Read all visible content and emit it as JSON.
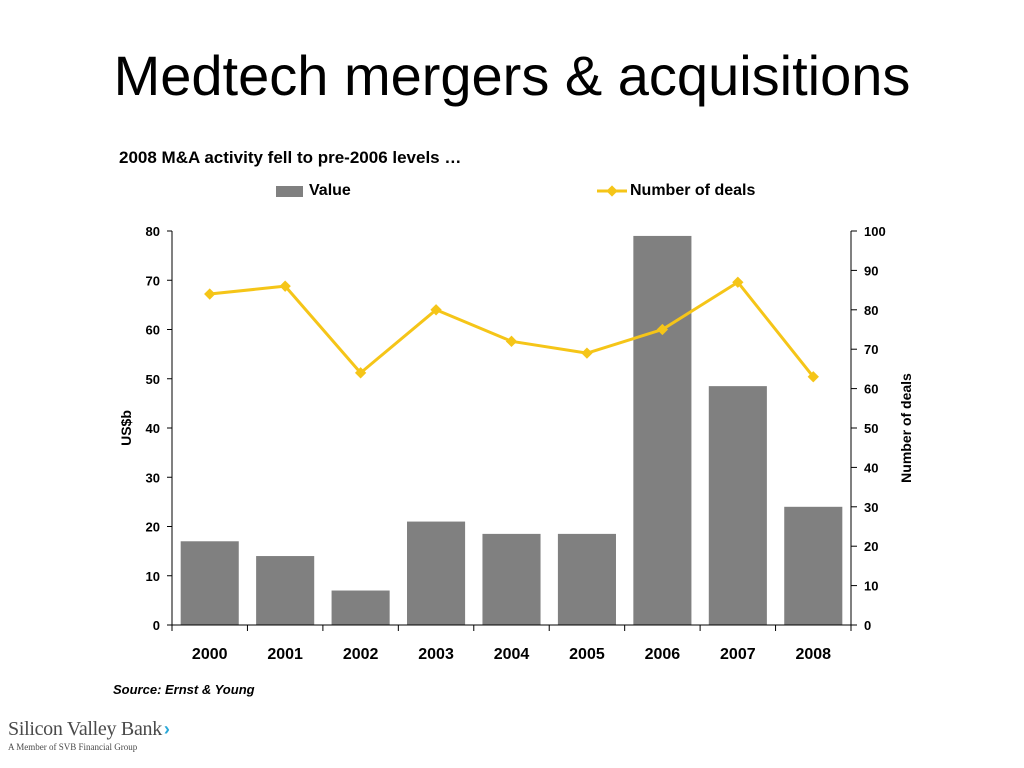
{
  "page": {
    "title": "Medtech mergers & acquisitions",
    "source": "Source: Ernst & Young",
    "logo": {
      "name": "Silicon Valley Bank",
      "chevron": "›",
      "tagline": "A Member of SVB Financial Group"
    }
  },
  "chart_data": {
    "type": "bar",
    "title": "2008 M&A activity fell to pre-2006 levels …",
    "categories": [
      "2000",
      "2001",
      "2002",
      "2003",
      "2004",
      "2005",
      "2006",
      "2007",
      "2008"
    ],
    "series": [
      {
        "name": "Value",
        "type": "bar",
        "axis": "left",
        "color": "#808080",
        "values": [
          17,
          14,
          7,
          21,
          18.5,
          18.5,
          79,
          48.5,
          24
        ]
      },
      {
        "name": "Number of deals",
        "type": "line",
        "axis": "right",
        "color": "#F5C518",
        "marker": "diamond",
        "values": [
          84,
          86,
          64,
          80,
          72,
          69,
          75,
          87,
          63
        ]
      }
    ],
    "ylabel": "US$b",
    "ylim": [
      0,
      80
    ],
    "yticks": [
      "0",
      "10",
      "20",
      "30",
      "40",
      "50",
      "60",
      "70",
      "80"
    ],
    "y2label": "Number of deals",
    "y2lim": [
      0,
      100
    ],
    "y2ticks": [
      "0",
      "10",
      "20",
      "30",
      "40",
      "50",
      "60",
      "70",
      "80",
      "90",
      "100"
    ],
    "grid": false,
    "legend": "top"
  }
}
